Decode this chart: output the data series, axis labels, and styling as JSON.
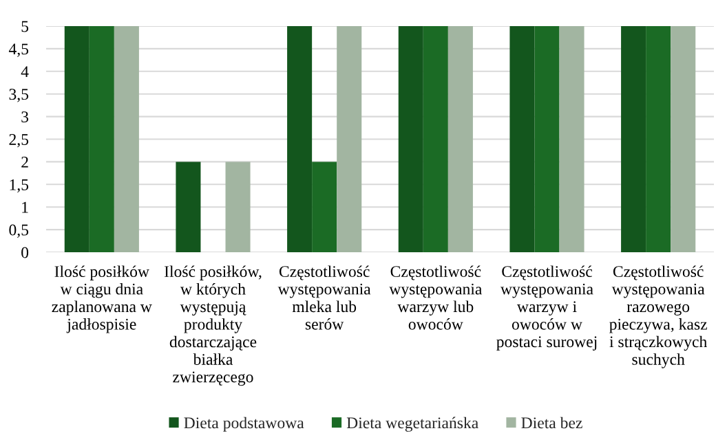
{
  "chart_data": {
    "type": "bar",
    "categories": [
      "Ilość posiłków w ciągu dnia zaplanowana w jadłospisie",
      "Ilość posiłków, w których występują produkty dostarczające białka zwierzęcego",
      "Częstotliwość występowania mleka lub serów",
      "Częstotliwość występowania warzyw lub owoców",
      "Częstotliwość występowania warzyw i owoców w postaci surowej",
      "Częstotliwość występowania razowego pieczywa, kasz i strączkowych suchych"
    ],
    "series": [
      {
        "name": "Dieta podstawowa",
        "color": "#13561d",
        "values": [
          5,
          2,
          5,
          5,
          5,
          5
        ]
      },
      {
        "name": "Dieta wegetariańska",
        "color": "#1b6b25",
        "values": [
          5,
          0,
          2,
          5,
          5,
          5
        ]
      },
      {
        "name": "Dieta bez",
        "color": "#a2b5a1",
        "values": [
          5,
          2,
          5,
          5,
          5,
          5
        ]
      }
    ],
    "ylim": [
      0,
      5
    ],
    "yticks": [
      0,
      {
        "value": 0.5,
        "label": "0,5"
      },
      1,
      {
        "value": 1.5,
        "label": "1,5"
      },
      2,
      {
        "value": 2.5,
        "label": "2,5"
      },
      3,
      {
        "value": 3.5,
        "label": "3,5"
      },
      4,
      {
        "value": 4.5,
        "label": "4,5"
      },
      5
    ],
    "grid": "y",
    "legend": "bottom"
  }
}
